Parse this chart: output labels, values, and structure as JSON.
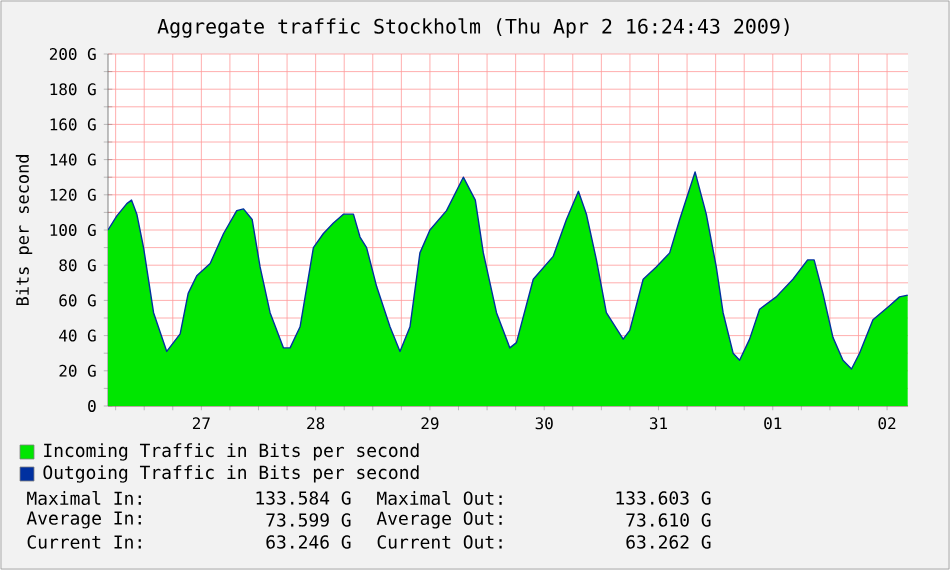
{
  "chart_data": {
    "type": "area",
    "title": "Aggregate traffic Stockholm (Thu Apr  2 16:24:43 2009)",
    "ylabel": "Bits per second",
    "x": [
      "2009-03-26T16:24",
      "2009-03-26T18:15",
      "2009-03-26T20:21",
      "2009-03-26T21:20",
      "2009-03-26T22:27",
      "2009-03-26T23:52",
      "2009-03-27T01:58",
      "2009-03-27T04:44",
      "2009-03-27T07:33",
      "2009-03-27T09:14",
      "2009-03-27T11:02",
      "2009-03-27T13:51",
      "2009-03-27T16:40",
      "2009-03-27T19:26",
      "2009-03-27T20:51",
      "2009-03-27T22:40",
      "2009-03-28T00:20",
      "2009-03-28T02:26",
      "2009-03-28T05:15",
      "2009-03-28T06:38",
      "2009-03-28T08:44",
      "2009-03-28T11:32",
      "2009-03-28T13:38",
      "2009-03-28T15:44",
      "2009-03-28T17:50",
      "2009-03-28T19:56",
      "2009-03-28T21:19",
      "2009-03-28T22:42",
      "2009-03-29T00:48",
      "2009-03-29T03:37",
      "2009-03-29T05:43",
      "2009-03-29T07:49",
      "2009-03-29T09:54",
      "2009-03-29T12:00",
      "2009-03-29T15:29",
      "2009-03-29T19:01",
      "2009-03-29T21:32",
      "2009-03-29T23:13",
      "2009-03-30T01:59",
      "2009-03-30T04:47",
      "2009-03-30T06:10",
      "2009-03-30T09:42",
      "2009-03-30T13:53",
      "2009-03-30T16:40",
      "2009-03-30T19:11",
      "2009-03-30T20:52",
      "2009-03-30T22:58",
      "2009-03-31T01:03",
      "2009-03-31T04:35",
      "2009-03-31T05:58",
      "2009-03-31T08:47",
      "2009-03-31T11:32",
      "2009-03-31T14:21",
      "2009-03-31T16:27",
      "2009-03-31T19:41",
      "2009-03-31T22:02",
      "2009-04-01T00:08",
      "2009-04-01T01:34",
      "2009-04-01T03:40",
      "2009-04-01T05:02",
      "2009-04-01T07:08",
      "2009-04-01T09:14",
      "2009-04-01T12:43",
      "2009-04-01T16:14",
      "2009-04-01T19:19",
      "2009-04-01T20:41",
      "2009-04-01T22:32",
      "2009-04-02T00:38",
      "2009-04-02T02:44",
      "2009-04-02T04:32",
      "2009-04-02T06:13",
      "2009-04-02T09:02",
      "2009-04-02T12:31",
      "2009-04-02T14:37",
      "2009-04-02T16:20"
    ],
    "series": [
      {
        "name": "Incoming Traffic in Bits per second",
        "color": "#00e600",
        "values": [
          100,
          108,
          115,
          117,
          109,
          90,
          53,
          31,
          41,
          64,
          74,
          81,
          98,
          111,
          112,
          106,
          79,
          53,
          33,
          33,
          45,
          90,
          98,
          104,
          109,
          109,
          96,
          90,
          68,
          45,
          31,
          45,
          87,
          100,
          111,
          130,
          117,
          87,
          53,
          33,
          36,
          72,
          85,
          106,
          122,
          109,
          83,
          53,
          38,
          43,
          72,
          79,
          87,
          106,
          133,
          109,
          79,
          53,
          30,
          26,
          38,
          55,
          62,
          72,
          83,
          83,
          64,
          39,
          26,
          21,
          30,
          49,
          57,
          62,
          63
        ]
      },
      {
        "name": "Outgoing Traffic in Bits per second",
        "type": "line",
        "color": "#0030a0",
        "values": [
          100,
          108,
          115,
          117,
          109,
          90,
          53,
          31,
          41,
          64,
          74,
          81,
          98,
          111,
          112,
          106,
          79,
          53,
          33,
          33,
          45,
          90,
          98,
          104,
          109,
          109,
          96,
          90,
          68,
          45,
          31,
          45,
          87,
          100,
          111,
          130,
          117,
          87,
          53,
          33,
          36,
          72,
          85,
          106,
          122,
          109,
          83,
          53,
          38,
          43,
          72,
          79,
          87,
          106,
          133,
          109,
          79,
          53,
          30,
          26,
          38,
          55,
          62,
          72,
          83,
          83,
          64,
          39,
          26,
          21,
          30,
          49,
          57,
          62,
          63
        ]
      }
    ],
    "xlim": [
      "2009-03-26T16:24",
      "2009-04-02T16:24"
    ],
    "xticks": [
      {
        "value": "2009-03-26T18:00",
        "label": null
      },
      {
        "value": "2009-03-27T00:00",
        "label": null
      },
      {
        "value": "2009-03-27T06:00",
        "label": null
      },
      {
        "value": "2009-03-27T12:00",
        "label": "27"
      },
      {
        "value": "2009-03-27T18:00",
        "label": null
      },
      {
        "value": "2009-03-28T00:00",
        "label": null
      },
      {
        "value": "2009-03-28T06:00",
        "label": null
      },
      {
        "value": "2009-03-28T12:00",
        "label": "28"
      },
      {
        "value": "2009-03-28T18:00",
        "label": null
      },
      {
        "value": "2009-03-29T00:00",
        "label": null
      },
      {
        "value": "2009-03-29T06:00",
        "label": null
      },
      {
        "value": "2009-03-29T12:00",
        "label": "29"
      },
      {
        "value": "2009-03-29T18:00",
        "label": null
      },
      {
        "value": "2009-03-30T00:00",
        "label": null
      },
      {
        "value": "2009-03-30T06:00",
        "label": null
      },
      {
        "value": "2009-03-30T12:00",
        "label": "30"
      },
      {
        "value": "2009-03-30T18:00",
        "label": null
      },
      {
        "value": "2009-03-31T00:00",
        "label": null
      },
      {
        "value": "2009-03-31T06:00",
        "label": null
      },
      {
        "value": "2009-03-31T12:00",
        "label": "31"
      },
      {
        "value": "2009-03-31T18:00",
        "label": null
      },
      {
        "value": "2009-04-01T00:00",
        "label": null
      },
      {
        "value": "2009-04-01T06:00",
        "label": null
      },
      {
        "value": "2009-04-01T12:00",
        "label": "01"
      },
      {
        "value": "2009-04-01T18:00",
        "label": null
      },
      {
        "value": "2009-04-02T00:00",
        "label": null
      },
      {
        "value": "2009-04-02T06:00",
        "label": null
      },
      {
        "value": "2009-04-02T12:00",
        "label": "02"
      }
    ],
    "ylim": [
      0,
      200
    ],
    "yticks": [
      0,
      {
        "value": 10,
        "label": null
      },
      {
        "value": 20,
        "label": "20 G"
      },
      {
        "value": 30,
        "label": null
      },
      {
        "value": 40,
        "label": "40 G"
      },
      {
        "value": 50,
        "label": null
      },
      {
        "value": 60,
        "label": "60 G"
      },
      {
        "value": 70,
        "label": null
      },
      {
        "value": 80,
        "label": "80 G"
      },
      {
        "value": 90,
        "label": null
      },
      {
        "value": 100,
        "label": "100 G"
      },
      {
        "value": 110,
        "label": null
      },
      {
        "value": 120,
        "label": "120 G"
      },
      {
        "value": 130,
        "label": null
      },
      {
        "value": 140,
        "label": "140 G"
      },
      {
        "value": 150,
        "label": null
      },
      {
        "value": 160,
        "label": "160 G"
      },
      {
        "value": 170,
        "label": null
      },
      {
        "value": 180,
        "label": "180 G"
      },
      {
        "value": 190,
        "label": null
      },
      {
        "value": 200,
        "label": "200 G"
      }
    ],
    "grid": true,
    "legend": "bottom",
    "marker": "none",
    "line_style": "solid",
    "annotations": [
      "Maximal In:",
      "133.584 G",
      "Maximal Out:",
      "133.603 G",
      "Average In:",
      "73.599 G",
      "Average Out:",
      "73.610 G",
      "Current In:",
      "63.246 G",
      "Current Out:",
      "63.262 G"
    ]
  }
}
